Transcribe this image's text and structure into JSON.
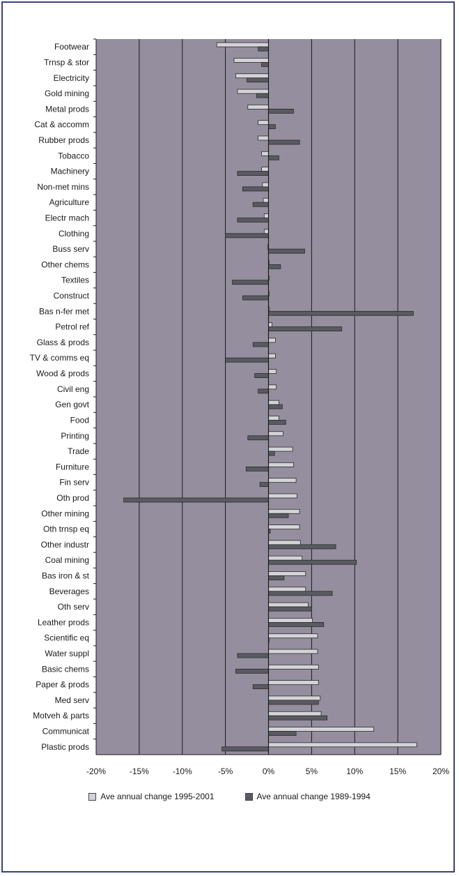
{
  "chart_data": {
    "type": "bar",
    "orientation": "horizontal",
    "categories": [
      "Footwear",
      "Trnsp & stor",
      "Electricity",
      "Gold mining",
      "Metal prods",
      "Cat & accomm",
      "Rubber prods",
      "Tobacco",
      "Machinery",
      "Non-met mins",
      "Agriculture",
      "Electr mach",
      "Clothing",
      "Buss serv",
      "Other chems",
      "Textiles",
      "Construct",
      "Bas n-fer met",
      "Petrol ref",
      "Glass & prods",
      "TV & comms eq",
      "Wood & prods",
      "Civil eng",
      "Gen govt",
      "Food",
      "Printing",
      "Trade",
      "Furniture",
      "Fin serv",
      "Oth prod",
      "Other mining",
      "Oth trnsp eq",
      "Other industr",
      "Coal mining",
      "Bas iron & st",
      "Beverages",
      "Oth serv",
      "Leather prods",
      "Scientific eq",
      "Water suppl",
      "Basic chems",
      "Paper & prods",
      "Med serv",
      "Motveh & parts",
      "Communicat",
      "Plastic prods"
    ],
    "series": [
      {
        "name": "Ave annual change 1995-2001",
        "color": "#d4d4d8",
        "values": [
          -6.0,
          -4.0,
          -3.8,
          -3.6,
          -2.4,
          -1.2,
          -1.2,
          -0.8,
          -0.8,
          -0.7,
          -0.6,
          -0.5,
          -0.5,
          -0.1,
          0.0,
          0.1,
          0.1,
          0.1,
          0.4,
          0.8,
          0.8,
          0.9,
          0.9,
          1.2,
          1.2,
          1.7,
          2.8,
          2.9,
          3.2,
          3.3,
          3.6,
          3.6,
          3.7,
          3.9,
          4.3,
          4.3,
          4.6,
          5.1,
          5.7,
          5.7,
          5.8,
          5.8,
          6.0,
          6.1,
          12.2,
          17.2
        ]
      },
      {
        "name": "Ave annual change 1989-1994",
        "color": "#5a5a62",
        "values": [
          -1.2,
          -0.8,
          -2.5,
          -1.4,
          2.9,
          0.8,
          3.6,
          1.2,
          -3.6,
          -3.0,
          -1.8,
          -3.6,
          -5.0,
          4.2,
          1.4,
          -4.2,
          -3.0,
          16.8,
          8.5,
          -1.8,
          -5.0,
          -1.6,
          -1.2,
          1.6,
          2.0,
          -2.4,
          0.7,
          -2.6,
          -1.0,
          -16.8,
          2.3,
          0.2,
          7.8,
          10.2,
          1.8,
          7.4,
          5.0,
          6.4,
          0.0,
          -3.6,
          -3.8,
          -1.8,
          5.8,
          6.8,
          3.2,
          -5.4
        ]
      }
    ],
    "xaxis": {
      "min": -20,
      "max": 20,
      "ticks": [
        "-20%",
        "-15%",
        "-10%",
        "-5%",
        "0%",
        "5%",
        "10%",
        "15%",
        "20%"
      ]
    },
    "grid": true,
    "legend": "bottom",
    "colors": {
      "plot_bg": "#948e9e",
      "gridline": "#1a1a1a",
      "frame": "#3a3f8a"
    }
  }
}
